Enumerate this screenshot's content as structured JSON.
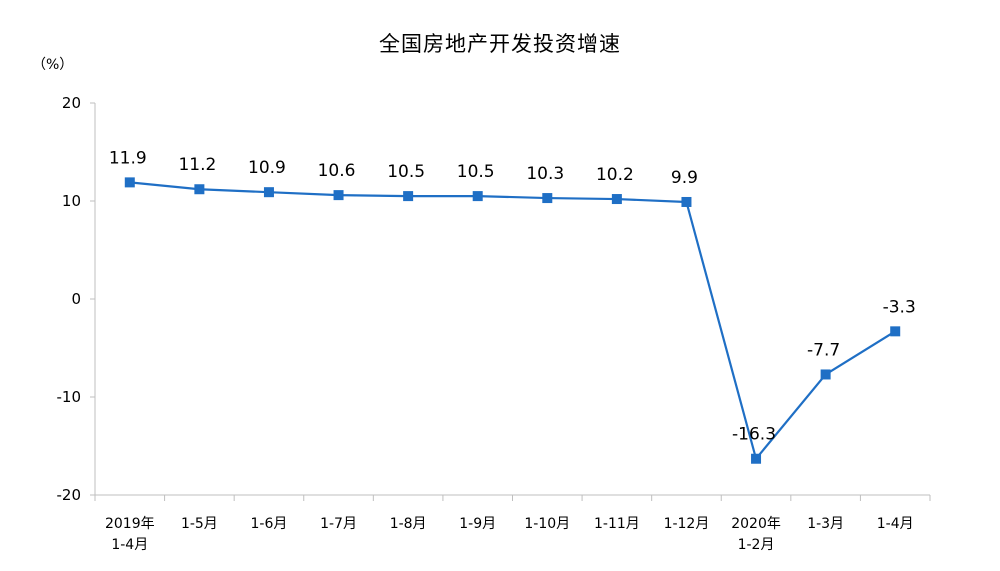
{
  "chart_data": {
    "type": "line",
    "title": "全国房地产开发投资增速",
    "unit_label": "（%）",
    "xlabel": "",
    "ylabel": "",
    "ylim": [
      -20,
      20
    ],
    "yticks": [
      "20",
      "10",
      "0",
      "-10",
      "-20"
    ],
    "grid": false,
    "color": "#1f6fc5",
    "categories": [
      [
        "2019年",
        "1-4月"
      ],
      [
        "1-5月"
      ],
      [
        "1-6月"
      ],
      [
        "1-7月"
      ],
      [
        "1-8月"
      ],
      [
        "1-9月"
      ],
      [
        "1-10月"
      ],
      [
        "1-11月"
      ],
      [
        "1-12月"
      ],
      [
        "2020年",
        "1-2月"
      ],
      [
        "1-3月"
      ],
      [
        "1-4月"
      ]
    ],
    "values": [
      11.9,
      11.2,
      10.9,
      10.6,
      10.5,
      10.5,
      10.3,
      10.2,
      9.9,
      -16.3,
      -7.7,
      -3.3
    ],
    "value_labels": [
      "11.9",
      "11.2",
      "10.9",
      "10.6",
      "10.5",
      "10.5",
      "10.3",
      "10.2",
      "9.9",
      "-16.3",
      "-7.7",
      "-3.3"
    ]
  }
}
